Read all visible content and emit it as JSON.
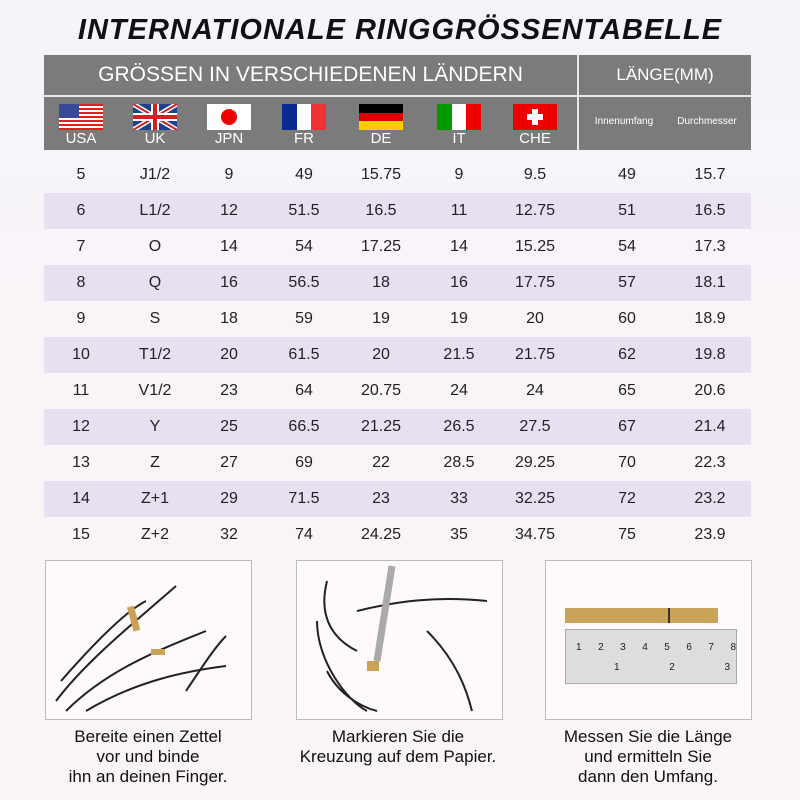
{
  "title": "INTERNATIONALE RINGGRÖSSENTABELLE",
  "header": {
    "countries_title": "GRÖSSEN IN VERSCHIEDENEN LÄNDERN",
    "length_title": "LÄNGE(MM)",
    "countries": [
      {
        "label": "USA",
        "flag": "us-flag-icon"
      },
      {
        "label": "UK",
        "flag": "uk-flag-icon"
      },
      {
        "label": "JPN",
        "flag": "japan-flag-icon"
      },
      {
        "label": "FR",
        "flag": "france-flag-icon"
      },
      {
        "label": "DE",
        "flag": "germany-flag-icon"
      },
      {
        "label": "IT",
        "flag": "italy-flag-icon"
      },
      {
        "label": "CHE",
        "flag": "switzerland-flag-icon"
      }
    ],
    "length_cols": [
      "Innenumfang",
      "Durchmesser"
    ]
  },
  "rows": [
    [
      "5",
      "J1/2",
      "9",
      "49",
      "15.75",
      "9",
      "9.5",
      "49",
      "15.7"
    ],
    [
      "6",
      "L1/2",
      "12",
      "51.5",
      "16.5",
      "11",
      "12.75",
      "51",
      "16.5"
    ],
    [
      "7",
      "O",
      "14",
      "54",
      "17.25",
      "14",
      "15.25",
      "54",
      "17.3"
    ],
    [
      "8",
      "Q",
      "16",
      "56.5",
      "18",
      "16",
      "17.75",
      "57",
      "18.1"
    ],
    [
      "9",
      "S",
      "18",
      "59",
      "19",
      "19",
      "20",
      "60",
      "18.9"
    ],
    [
      "10",
      "T1/2",
      "20",
      "61.5",
      "20",
      "21.5",
      "21.75",
      "62",
      "19.8"
    ],
    [
      "11",
      "V1/2",
      "23",
      "64",
      "20.75",
      "24",
      "24",
      "65",
      "20.6"
    ],
    [
      "12",
      "Y",
      "25",
      "66.5",
      "21.25",
      "26.5",
      "27.5",
      "67",
      "21.4"
    ],
    [
      "13",
      "Z",
      "27",
      "69",
      "22",
      "28.5",
      "29.25",
      "70",
      "22.3"
    ],
    [
      "14",
      "Z+1",
      "29",
      "71.5",
      "23",
      "33",
      "32.25",
      "72",
      "23.2"
    ],
    [
      "15",
      "Z+2",
      "32",
      "74",
      "24.25",
      "35",
      "34.75",
      "75",
      "23.9"
    ]
  ],
  "steps": [
    {
      "line1": "Bereite einen Zettel",
      "line2": "vor und binde",
      "line3": "ihn an deinen Finger."
    },
    {
      "line1": "Markieren Sie die",
      "line2": "Kreuzung auf dem Papier.",
      "line3": ""
    },
    {
      "line1": "Messen Sie die Länge",
      "line2": "und ermitteln Sie",
      "line3": "dann den Umfang."
    }
  ],
  "ruler": {
    "top": [
      "1",
      "2",
      "3",
      "4",
      "5",
      "6",
      "7",
      "8"
    ],
    "bottom": [
      "1",
      "2",
      "3"
    ]
  },
  "colors": {
    "header_bg": "#7b7b7b",
    "alt_row": "#e6e0f0",
    "paper_strip": "#c9a35a"
  }
}
